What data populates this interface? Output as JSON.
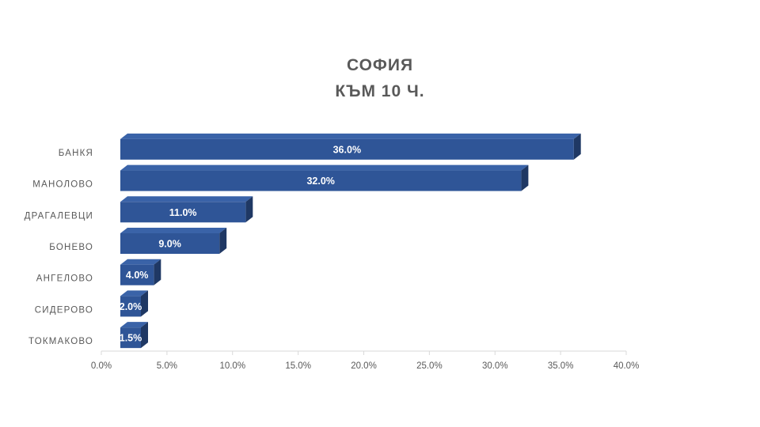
{
  "chart_data": {
    "type": "bar",
    "orientation": "horizontal",
    "title": "СОФИЯ",
    "subtitle": "КЪМ 10 Ч.",
    "categories": [
      "БАНКЯ",
      "МАНОЛОВО",
      "ДРАГАЛЕВЦИ",
      "БОНЕВО",
      "АНГЕЛОВО",
      "СИДЕРОВО",
      "ТОКМАКОВО"
    ],
    "values": [
      36.0,
      32.0,
      11.0,
      9.0,
      4.0,
      2.0,
      1.5
    ],
    "data_labels": [
      "36.0%",
      "32.0%",
      "11.0%",
      "9.0%",
      "4.0%",
      "2.0%",
      "1.5%"
    ],
    "xlim": [
      0,
      40
    ],
    "x_ticks": [
      0,
      5,
      10,
      15,
      20,
      25,
      30,
      35,
      40
    ],
    "x_tick_labels": [
      "0.0%",
      "5.0%",
      "10.0%",
      "15.0%",
      "20.0%",
      "25.0%",
      "30.0%",
      "35.0%",
      "40.0%"
    ],
    "xlabel": "",
    "ylabel": "",
    "grid": false,
    "legend": "none",
    "style": "3d",
    "colors": {
      "bar_front": "#2F5597",
      "bar_top": "#3A63A8",
      "bar_side": "#1F3864",
      "axis": "#D9D9D9",
      "text": "#595959"
    }
  }
}
